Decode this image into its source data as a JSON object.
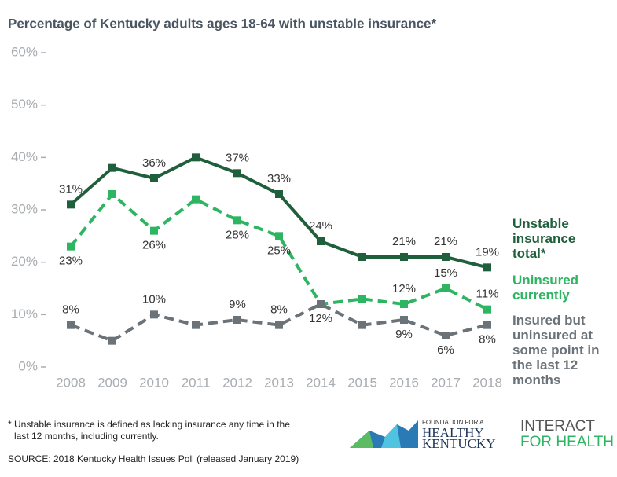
{
  "chart_data": {
    "type": "line",
    "title": "Percentage of Kentucky adults ages 18-64 with unstable insurance*",
    "categories": [
      "2008",
      "2009",
      "2010",
      "2011",
      "2012",
      "2013",
      "2014",
      "2015",
      "2016",
      "2017",
      "2018"
    ],
    "ylim": [
      0,
      60
    ],
    "yticks": [
      {
        "value": 0,
        "label": "0%"
      },
      {
        "value": 10,
        "label": "10%"
      },
      {
        "value": 20,
        "label": "20%"
      },
      {
        "value": 30,
        "label": "30%"
      },
      {
        "value": 40,
        "label": "40%"
      },
      {
        "value": 50,
        "label": "50%"
      },
      {
        "value": 60,
        "label": "60%"
      }
    ],
    "grid": false,
    "legend": "right",
    "series": [
      {
        "name": "Unstable insurance total*",
        "color": "#1f5f3b",
        "dashed": false,
        "values": [
          31,
          38,
          36,
          40,
          37,
          33,
          24,
          21,
          21,
          21,
          19
        ],
        "value_labels": [
          "31%",
          null,
          "36%",
          null,
          "37%",
          "33%",
          "24%",
          null,
          "21%",
          "21%",
          "19%"
        ]
      },
      {
        "name": "Uninsured currently",
        "color": "#2db562",
        "dashed": true,
        "values": [
          23,
          33,
          26,
          32,
          28,
          25,
          12,
          13,
          12,
          15,
          11
        ],
        "value_labels": [
          "23%",
          null,
          "26%",
          null,
          "28%",
          "25%",
          null,
          null,
          "12%",
          "15%",
          "11%"
        ]
      },
      {
        "name": "Insured but uninsured at some point in the last 12 months",
        "color": "#6b7379",
        "dashed": true,
        "values": [
          8,
          5,
          10,
          8,
          9,
          8,
          12,
          8,
          9,
          6,
          8
        ],
        "value_labels": [
          "8%",
          null,
          "10%",
          null,
          "9%",
          "8%",
          "12%",
          null,
          "9%",
          "6%",
          "8%"
        ]
      }
    ]
  },
  "footer": {
    "note": "* Unstable insurance is defined as lacking insurance any time in the last 12 months, including currently.",
    "source": "SOURCE: 2018 Kentucky Health Issues Poll (released January 2019)",
    "logo1": {
      "line1": "FOUNDATION FOR A",
      "line2": "HEALTHY",
      "line3": "KENTUCKY"
    },
    "logo2": {
      "line1": "INTERACT",
      "line2a": "FOR HE",
      "line2b": "A",
      "line2c": "LTH"
    }
  }
}
